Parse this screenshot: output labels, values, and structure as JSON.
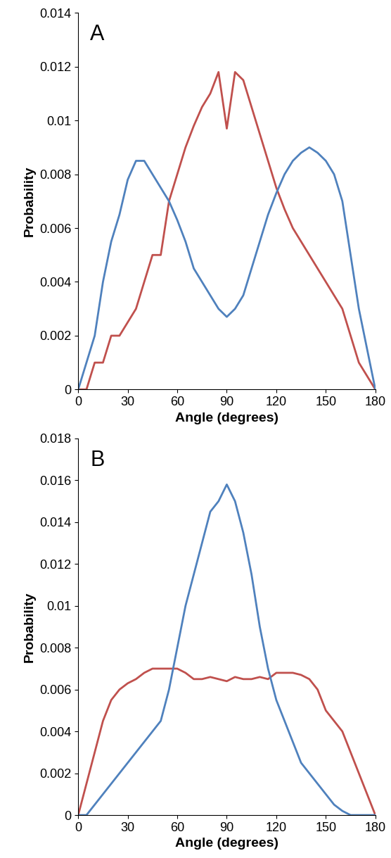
{
  "chart_data": [
    {
      "type": "line",
      "title": "A",
      "x_label": "Angle (degrees)",
      "y_label": "Probability",
      "x": [
        0,
        5,
        10,
        15,
        20,
        25,
        30,
        35,
        40,
        45,
        50,
        55,
        60,
        65,
        70,
        75,
        80,
        85,
        90,
        95,
        100,
        105,
        110,
        115,
        120,
        125,
        130,
        135,
        140,
        145,
        150,
        155,
        160,
        165,
        170,
        175,
        180
      ],
      "series": [
        {
          "color": "#c0504d",
          "values": [
            0,
            0,
            0.001,
            0.001,
            0.002,
            0.002,
            0.0025,
            0.003,
            0.004,
            0.005,
            0.005,
            0.007,
            0.008,
            0.009,
            0.0098,
            0.0105,
            0.011,
            0.0118,
            0.0097,
            0.0118,
            0.0115,
            0.0105,
            0.0095,
            0.0085,
            0.0075,
            0.0067,
            0.006,
            0.0055,
            0.005,
            0.0045,
            0.004,
            0.0035,
            0.003,
            0.002,
            0.001,
            0.0005,
            0
          ]
        },
        {
          "color": "#4f81bd",
          "values": [
            0,
            0.001,
            0.002,
            0.004,
            0.0055,
            0.0065,
            0.0078,
            0.0085,
            0.0085,
            0.008,
            0.0075,
            0.007,
            0.0063,
            0.0055,
            0.0045,
            0.004,
            0.0035,
            0.003,
            0.0027,
            0.003,
            0.0035,
            0.0045,
            0.0055,
            0.0065,
            0.0073,
            0.008,
            0.0085,
            0.0088,
            0.009,
            0.0088,
            0.0085,
            0.008,
            0.007,
            0.005,
            0.003,
            0.0015,
            0
          ]
        }
      ],
      "xlim": [
        0,
        180
      ],
      "xticks": [
        0,
        30,
        60,
        90,
        120,
        150,
        180
      ],
      "ylim": [
        0,
        0.014
      ],
      "yticks": [
        0,
        0.002,
        0.004,
        0.006,
        0.008,
        0.01,
        0.012,
        0.014
      ],
      "grid": false
    },
    {
      "type": "line",
      "title": "B",
      "x_label": "Angle (degrees)",
      "y_label": "Probability",
      "x": [
        0,
        5,
        10,
        15,
        20,
        25,
        30,
        35,
        40,
        45,
        50,
        55,
        60,
        65,
        70,
        75,
        80,
        85,
        90,
        95,
        100,
        105,
        110,
        115,
        120,
        125,
        130,
        135,
        140,
        145,
        150,
        155,
        160,
        165,
        170,
        175,
        180
      ],
      "series": [
        {
          "color": "#c0504d",
          "values": [
            0,
            0.0015,
            0.003,
            0.0045,
            0.0055,
            0.006,
            0.0063,
            0.0065,
            0.0068,
            0.007,
            0.007,
            0.007,
            0.007,
            0.0068,
            0.0065,
            0.0065,
            0.0066,
            0.0065,
            0.0064,
            0.0066,
            0.0065,
            0.0065,
            0.0066,
            0.0065,
            0.0068,
            0.0068,
            0.0068,
            0.0067,
            0.0065,
            0.006,
            0.005,
            0.0045,
            0.004,
            0.003,
            0.002,
            0.001,
            0
          ]
        },
        {
          "color": "#4f81bd",
          "values": [
            0,
            0,
            0.0005,
            0.001,
            0.0015,
            0.002,
            0.0025,
            0.003,
            0.0035,
            0.004,
            0.0045,
            0.006,
            0.008,
            0.01,
            0.0115,
            0.013,
            0.0145,
            0.015,
            0.0158,
            0.015,
            0.0135,
            0.0115,
            0.009,
            0.007,
            0.0055,
            0.0045,
            0.0035,
            0.0025,
            0.002,
            0.0015,
            0.001,
            0.0005,
            0.0002,
            0,
            0,
            0,
            0
          ]
        }
      ],
      "xlim": [
        0,
        180
      ],
      "xticks": [
        0,
        30,
        60,
        90,
        120,
        150,
        180
      ],
      "ylim": [
        0,
        0.018
      ],
      "yticks": [
        0,
        0.002,
        0.004,
        0.006,
        0.008,
        0.01,
        0.012,
        0.014,
        0.016,
        0.018
      ],
      "grid": false
    }
  ]
}
